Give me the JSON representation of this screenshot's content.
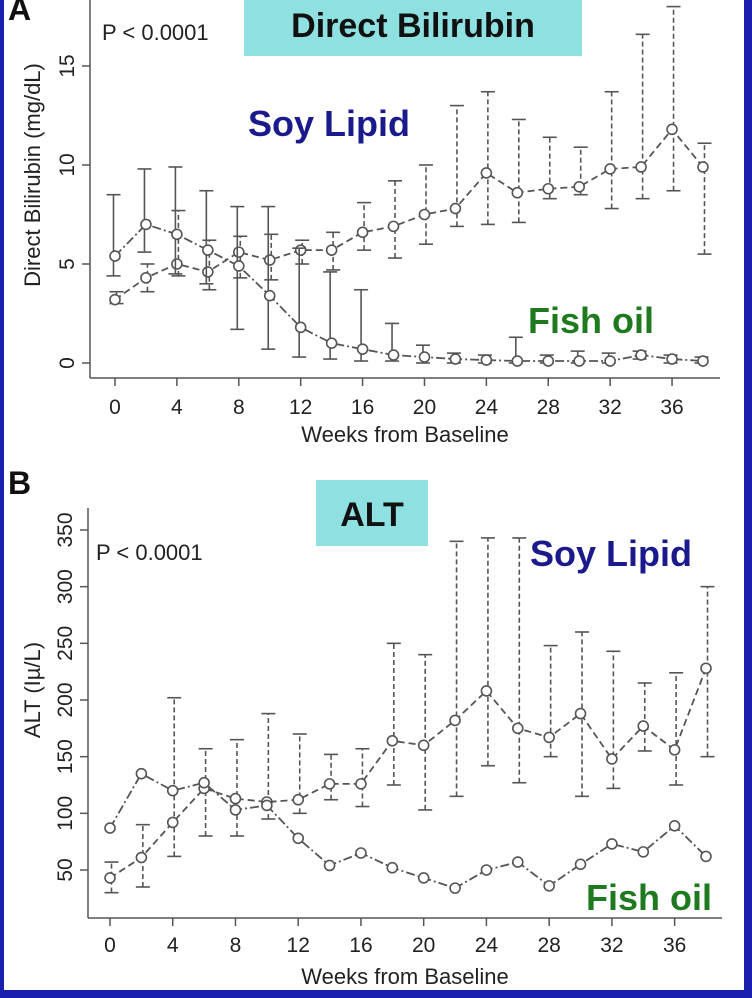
{
  "figure": {
    "background": "#1b1fae",
    "panel_background": "#ffffff",
    "title_box_color": "#8fe0e0",
    "soy_color": "#1a1a8c",
    "fish_color": "#1f7a1f",
    "line_color": "#555555"
  },
  "chart_data": [
    {
      "type": "line",
      "panel_label": "A",
      "title": "Direct Bilirubin",
      "pvalue": "P < 0.0001",
      "xlabel": "Weeks from Baseline",
      "ylabel": "Direct Bilirubin (mg/dL)",
      "xlim": [
        -1,
        39
      ],
      "ylim": [
        -0.6,
        18.2
      ],
      "xticks": [
        0,
        4,
        8,
        12,
        16,
        20,
        24,
        28,
        32,
        36
      ],
      "yticks": [
        0,
        5,
        10,
        15
      ],
      "x": [
        0,
        2,
        4,
        6,
        8,
        10,
        12,
        14,
        16,
        18,
        20,
        22,
        24,
        26,
        28,
        30,
        32,
        34,
        36,
        38
      ],
      "series": [
        {
          "name": "Soy Lipid",
          "line_style": "dashed",
          "values": [
            3.2,
            4.3,
            5.0,
            4.6,
            5.6,
            5.2,
            5.7,
            5.7,
            6.6,
            6.9,
            7.5,
            7.8,
            9.6,
            8.6,
            8.8,
            8.9,
            9.8,
            9.9,
            11.8,
            9.9
          ],
          "lower": [
            3.0,
            3.6,
            4.4,
            3.7,
            4.3,
            4.2,
            5.0,
            4.7,
            5.7,
            5.3,
            6.0,
            6.9,
            7.0,
            7.1,
            8.3,
            8.5,
            7.8,
            8.3,
            8.7,
            5.5
          ],
          "upper": [
            3.6,
            5.0,
            7.7,
            6.2,
            6.4,
            6.5,
            6.2,
            6.6,
            8.1,
            9.2,
            10.0,
            13.0,
            13.7,
            12.3,
            11.4,
            10.9,
            13.7,
            16.6,
            18.0,
            11.1
          ]
        },
        {
          "name": "Fish oil",
          "line_style": "dash-dot",
          "values": [
            5.4,
            7.0,
            6.5,
            5.7,
            4.9,
            3.4,
            1.8,
            1.0,
            0.7,
            0.4,
            0.3,
            0.2,
            0.15,
            0.1,
            0.1,
            0.1,
            0.1,
            0.4,
            0.2,
            0.1
          ],
          "lower": [
            4.4,
            5.6,
            4.5,
            4.0,
            1.7,
            0.7,
            0.3,
            0.2,
            0.1,
            0.1,
            0.0,
            0.0,
            0.0,
            0.0,
            0.0,
            0.0,
            0.0,
            0.2,
            0.0,
            0.0
          ],
          "upper": [
            8.5,
            9.8,
            9.9,
            8.7,
            7.9,
            7.9,
            5.8,
            4.6,
            3.7,
            2.0,
            0.9,
            0.5,
            0.4,
            1.3,
            0.4,
            0.6,
            0.5,
            0.6,
            0.4,
            0.3
          ]
        }
      ]
    },
    {
      "type": "line",
      "panel_label": "B",
      "title": "ALT",
      "pvalue": "P < 0.0001",
      "xlabel": "Weeks from Baseline",
      "ylabel": "ALT (Iµ/L)",
      "xlim": [
        -1,
        39
      ],
      "ylim": [
        10,
        362
      ],
      "xticks": [
        0,
        4,
        8,
        12,
        16,
        20,
        24,
        28,
        32,
        36
      ],
      "yticks": [
        50,
        100,
        150,
        200,
        250,
        300,
        350
      ],
      "x": [
        0,
        2,
        4,
        6,
        8,
        10,
        12,
        14,
        16,
        18,
        20,
        22,
        24,
        26,
        28,
        30,
        32,
        34,
        36,
        38
      ],
      "series": [
        {
          "name": "Soy Lipid",
          "line_style": "dashed",
          "values": [
            43,
            61,
            92,
            122,
            113,
            110,
            112,
            126,
            126,
            164,
            160,
            182,
            208,
            175,
            167,
            188,
            148,
            177,
            156,
            228
          ],
          "lower": [
            30,
            35,
            62,
            80,
            80,
            95,
            100,
            112,
            106,
            125,
            103,
            115,
            142,
            127,
            150,
            115,
            122,
            155,
            125,
            150
          ],
          "upper": [
            57,
            90,
            202,
            157,
            165,
            188,
            170,
            152,
            157,
            250,
            240,
            340,
            343,
            343,
            248,
            260,
            243,
            215,
            224,
            300
          ]
        },
        {
          "name": "Fish oil",
          "line_style": "dash-dot",
          "values": [
            87,
            135,
            120,
            127,
            103,
            107,
            78,
            54,
            65,
            52,
            43,
            34,
            50,
            57,
            36,
            55,
            73,
            66,
            89,
            62
          ]
        }
      ]
    }
  ]
}
